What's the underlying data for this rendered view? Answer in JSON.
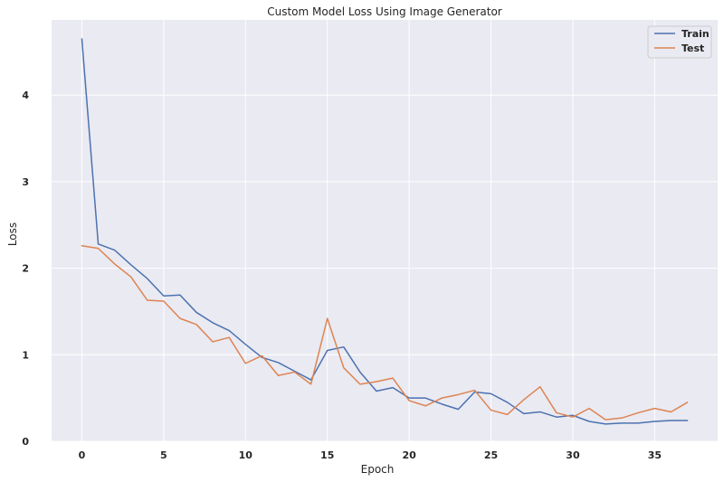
{
  "chart_data": {
    "type": "line",
    "title": "Custom Model Loss Using Image Generator",
    "xlabel": "Epoch",
    "ylabel": "Loss",
    "xlim": [
      -1.85,
      38.85
    ],
    "ylim": [
      0,
      4.87
    ],
    "xticks": [
      0,
      5,
      10,
      15,
      20,
      25,
      30,
      35
    ],
    "yticks": [
      0,
      1,
      2,
      3,
      4
    ],
    "grid": true,
    "legend_position": "top-right",
    "x": [
      0,
      1,
      2,
      3,
      4,
      5,
      6,
      7,
      8,
      9,
      10,
      11,
      12,
      13,
      14,
      15,
      16,
      17,
      18,
      19,
      20,
      21,
      22,
      23,
      24,
      25,
      26,
      27,
      28,
      29,
      30,
      31,
      32,
      33,
      34,
      35,
      36,
      37
    ],
    "series": [
      {
        "name": "Train",
        "color": "#4c72b0",
        "values": [
          4.65,
          2.28,
          2.21,
          2.04,
          1.88,
          1.68,
          1.69,
          1.49,
          1.37,
          1.28,
          1.12,
          0.97,
          0.91,
          0.81,
          0.71,
          1.05,
          1.09,
          0.8,
          0.58,
          0.62,
          0.5,
          0.5,
          0.43,
          0.37,
          0.57,
          0.55,
          0.45,
          0.32,
          0.34,
          0.28,
          0.3,
          0.23,
          0.2,
          0.21,
          0.21,
          0.23,
          0.24,
          0.24
        ]
      },
      {
        "name": "Test",
        "color": "#dd8452",
        "values": [
          2.26,
          2.23,
          2.05,
          1.9,
          1.63,
          1.62,
          1.42,
          1.35,
          1.15,
          1.2,
          0.9,
          0.99,
          0.76,
          0.8,
          0.66,
          1.42,
          0.85,
          0.66,
          0.69,
          0.73,
          0.47,
          0.41,
          0.5,
          0.54,
          0.59,
          0.36,
          0.31,
          0.48,
          0.63,
          0.33,
          0.28,
          0.38,
          0.25,
          0.27,
          0.33,
          0.38,
          0.34,
          0.45
        ]
      }
    ]
  }
}
